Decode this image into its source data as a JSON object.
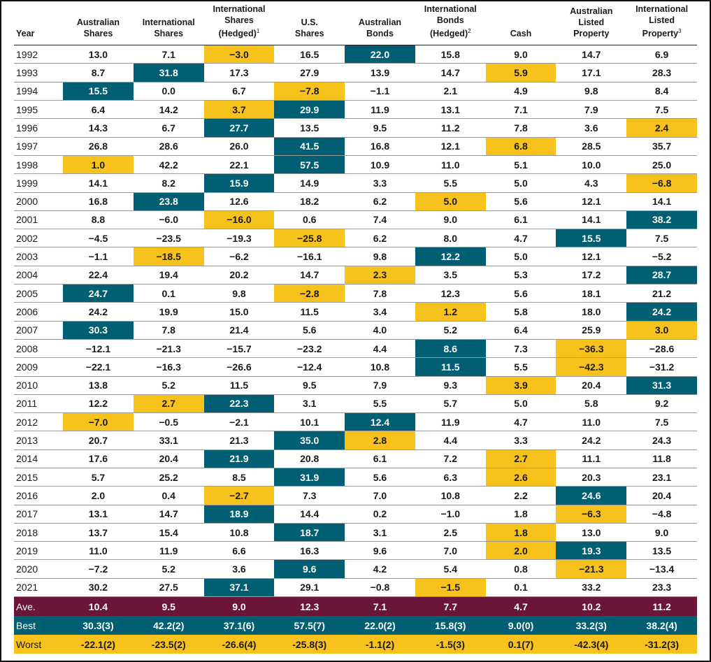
{
  "colors": {
    "best": "#005f73",
    "worst": "#f8c21c",
    "average": "#6b1638"
  },
  "headers": {
    "year": "Year",
    "columns": [
      {
        "label": "Australian\nShares",
        "note": ""
      },
      {
        "label": "International\nShares",
        "note": ""
      },
      {
        "label": "International\nShares\n(Hedged)",
        "note": "1"
      },
      {
        "label": "U.S.\nShares",
        "note": ""
      },
      {
        "label": "Australian\nBonds",
        "note": ""
      },
      {
        "label": "International\nBonds\n(Hedged)",
        "note": "2"
      },
      {
        "label": "Cash",
        "note": ""
      },
      {
        "label": "Australian\nListed\nProperty",
        "note": ""
      },
      {
        "label": "International\nListed\nProperty",
        "note": "3"
      }
    ]
  },
  "rows": [
    {
      "year": "1992",
      "values": [
        "13.0",
        "7.1",
        "−3.0",
        "16.5",
        "22.0",
        "15.8",
        "9.0",
        "14.7",
        "6.9"
      ],
      "best": 4,
      "worst": 2
    },
    {
      "year": "1993",
      "values": [
        "8.7",
        "31.8",
        "17.3",
        "27.9",
        "13.9",
        "14.7",
        "5.9",
        "17.1",
        "28.3"
      ],
      "best": 1,
      "worst": 6
    },
    {
      "year": "1994",
      "values": [
        "15.5",
        "0.0",
        "6.7",
        "−7.8",
        "−1.1",
        "2.1",
        "4.9",
        "9.8",
        "8.4"
      ],
      "best": 0,
      "worst": 3
    },
    {
      "year": "1995",
      "values": [
        "6.4",
        "14.2",
        "3.7",
        "29.9",
        "11.9",
        "13.1",
        "7.1",
        "7.9",
        "7.5"
      ],
      "best": 3,
      "worst": 2
    },
    {
      "year": "1996",
      "values": [
        "14.3",
        "6.7",
        "27.7",
        "13.5",
        "9.5",
        "11.2",
        "7.8",
        "3.6",
        "2.4"
      ],
      "best": 2,
      "worst": 8
    },
    {
      "year": "1997",
      "values": [
        "26.8",
        "28.6",
        "26.0",
        "41.5",
        "16.8",
        "12.1",
        "6.8",
        "28.5",
        "35.7"
      ],
      "best": 3,
      "worst": 6
    },
    {
      "year": "1998",
      "values": [
        "1.0",
        "42.2",
        "22.1",
        "57.5",
        "10.9",
        "11.0",
        "5.1",
        "10.0",
        "25.0"
      ],
      "best": 3,
      "worst": 0
    },
    {
      "year": "1999",
      "values": [
        "14.1",
        "8.2",
        "15.9",
        "14.9",
        "3.3",
        "5.5",
        "5.0",
        "4.3",
        "−6.8"
      ],
      "best": 2,
      "worst": 8
    },
    {
      "year": "2000",
      "values": [
        "16.8",
        "23.8",
        "12.6",
        "18.2",
        "6.2",
        "5.0",
        "5.6",
        "12.1",
        "14.1"
      ],
      "best": 1,
      "worst": 5
    },
    {
      "year": "2001",
      "values": [
        "8.8",
        "−6.0",
        "−16.0",
        "0.6",
        "7.4",
        "9.0",
        "6.1",
        "14.1",
        "38.2"
      ],
      "best": 8,
      "worst": 2
    },
    {
      "year": "2002",
      "values": [
        "−4.5",
        "−23.5",
        "−19.3",
        "−25.8",
        "6.2",
        "8.0",
        "4.7",
        "15.5",
        "7.5"
      ],
      "best": 7,
      "worst": 3
    },
    {
      "year": "2003",
      "values": [
        "−1.1",
        "−18.5",
        "−6.2",
        "−16.1",
        "9.8",
        "12.2",
        "5.0",
        "12.1",
        "−5.2"
      ],
      "best": 5,
      "worst": 1
    },
    {
      "year": "2004",
      "values": [
        "22.4",
        "19.4",
        "20.2",
        "14.7",
        "2.3",
        "3.5",
        "5.3",
        "17.2",
        "28.7"
      ],
      "best": 8,
      "worst": 4
    },
    {
      "year": "2005",
      "values": [
        "24.7",
        "0.1",
        "9.8",
        "−2.8",
        "7.8",
        "12.3",
        "5.6",
        "18.1",
        "21.2"
      ],
      "best": 0,
      "worst": 3
    },
    {
      "year": "2006",
      "values": [
        "24.2",
        "19.9",
        "15.0",
        "11.5",
        "3.4",
        "1.2",
        "5.8",
        "18.0",
        "24.2"
      ],
      "best": 8,
      "worst": 5
    },
    {
      "year": "2007",
      "values": [
        "30.3",
        "7.8",
        "21.4",
        "5.6",
        "4.0",
        "5.2",
        "6.4",
        "25.9",
        "3.0"
      ],
      "best": 0,
      "worst": 8
    },
    {
      "year": "2008",
      "values": [
        "−12.1",
        "−21.3",
        "−15.7",
        "−23.2",
        "4.4",
        "8.6",
        "7.3",
        "−36.3",
        "−28.6"
      ],
      "best": 5,
      "worst": 7
    },
    {
      "year": "2009",
      "values": [
        "−22.1",
        "−16.3",
        "−26.6",
        "−12.4",
        "10.8",
        "11.5",
        "5.5",
        "−42.3",
        "−31.2"
      ],
      "best": 5,
      "worst": 7
    },
    {
      "year": "2010",
      "values": [
        "13.8",
        "5.2",
        "11.5",
        "9.5",
        "7.9",
        "9.3",
        "3.9",
        "20.4",
        "31.3"
      ],
      "best": 8,
      "worst": 6
    },
    {
      "year": "2011",
      "values": [
        "12.2",
        "2.7",
        "22.3",
        "3.1",
        "5.5",
        "5.7",
        "5.0",
        "5.8",
        "9.2"
      ],
      "best": 2,
      "worst": 1
    },
    {
      "year": "2012",
      "values": [
        "−7.0",
        "−0.5",
        "−2.1",
        "10.1",
        "12.4",
        "11.9",
        "4.7",
        "11.0",
        "7.5"
      ],
      "best": 4,
      "worst": 0
    },
    {
      "year": "2013",
      "values": [
        "20.7",
        "33.1",
        "21.3",
        "35.0",
        "2.8",
        "4.4",
        "3.3",
        "24.2",
        "24.3"
      ],
      "best": 3,
      "worst": 4
    },
    {
      "year": "2014",
      "values": [
        "17.6",
        "20.4",
        "21.9",
        "20.8",
        "6.1",
        "7.2",
        "2.7",
        "11.1",
        "11.8"
      ],
      "best": 2,
      "worst": 6
    },
    {
      "year": "2015",
      "values": [
        "5.7",
        "25.2",
        "8.5",
        "31.9",
        "5.6",
        "6.3",
        "2.6",
        "20.3",
        "23.1"
      ],
      "best": 3,
      "worst": 6
    },
    {
      "year": "2016",
      "values": [
        "2.0",
        "0.4",
        "−2.7",
        "7.3",
        "7.0",
        "10.8",
        "2.2",
        "24.6",
        "20.4"
      ],
      "best": 7,
      "worst": 2
    },
    {
      "year": "2017",
      "values": [
        "13.1",
        "14.7",
        "18.9",
        "14.4",
        "0.2",
        "−1.0",
        "1.8",
        "−6.3",
        "−4.8"
      ],
      "best": 2,
      "worst": 7
    },
    {
      "year": "2018",
      "values": [
        "13.7",
        "15.4",
        "10.8",
        "18.7",
        "3.1",
        "2.5",
        "1.8",
        "13.0",
        "9.0"
      ],
      "best": 3,
      "worst": 6
    },
    {
      "year": "2019",
      "values": [
        "11.0",
        "11.9",
        "6.6",
        "16.3",
        "9.6",
        "7.0",
        "2.0",
        "19.3",
        "13.5"
      ],
      "best": 7,
      "worst": 6
    },
    {
      "year": "2020",
      "values": [
        "−7.2",
        "5.2",
        "3.6",
        "9.6",
        "4.2",
        "5.4",
        "0.8",
        "−21.3",
        "−13.4"
      ],
      "best": 3,
      "worst": 7
    },
    {
      "year": "2021",
      "values": [
        "30.2",
        "27.5",
        "37.1",
        "29.1",
        "−0.8",
        "−1.5",
        "0.1",
        "33.2",
        "23.3"
      ],
      "best": 2,
      "worst": 5
    }
  ],
  "summary": {
    "average": {
      "label": "Ave.",
      "values": [
        "10.4",
        "9.5",
        "9.0",
        "12.3",
        "7.1",
        "7.7",
        "4.7",
        "10.2",
        "11.2"
      ]
    },
    "best": {
      "label": "Best",
      "values": [
        "30.3(3)",
        "42.2(2)",
        "37.1(6)",
        "57.5(7)",
        "22.0(2)",
        "15.8(3)",
        "9.0(0)",
        "33.2(3)",
        "38.2(4)"
      ]
    },
    "worst": {
      "label": "Worst",
      "values": [
        "-22.1(2)",
        "-23.5(2)",
        "-26.6(4)",
        "-25.8(3)",
        "-1.1(2)",
        "-1.5(3)",
        "0.1(7)",
        "-42.3(4)",
        "-31.2(3)"
      ]
    }
  }
}
